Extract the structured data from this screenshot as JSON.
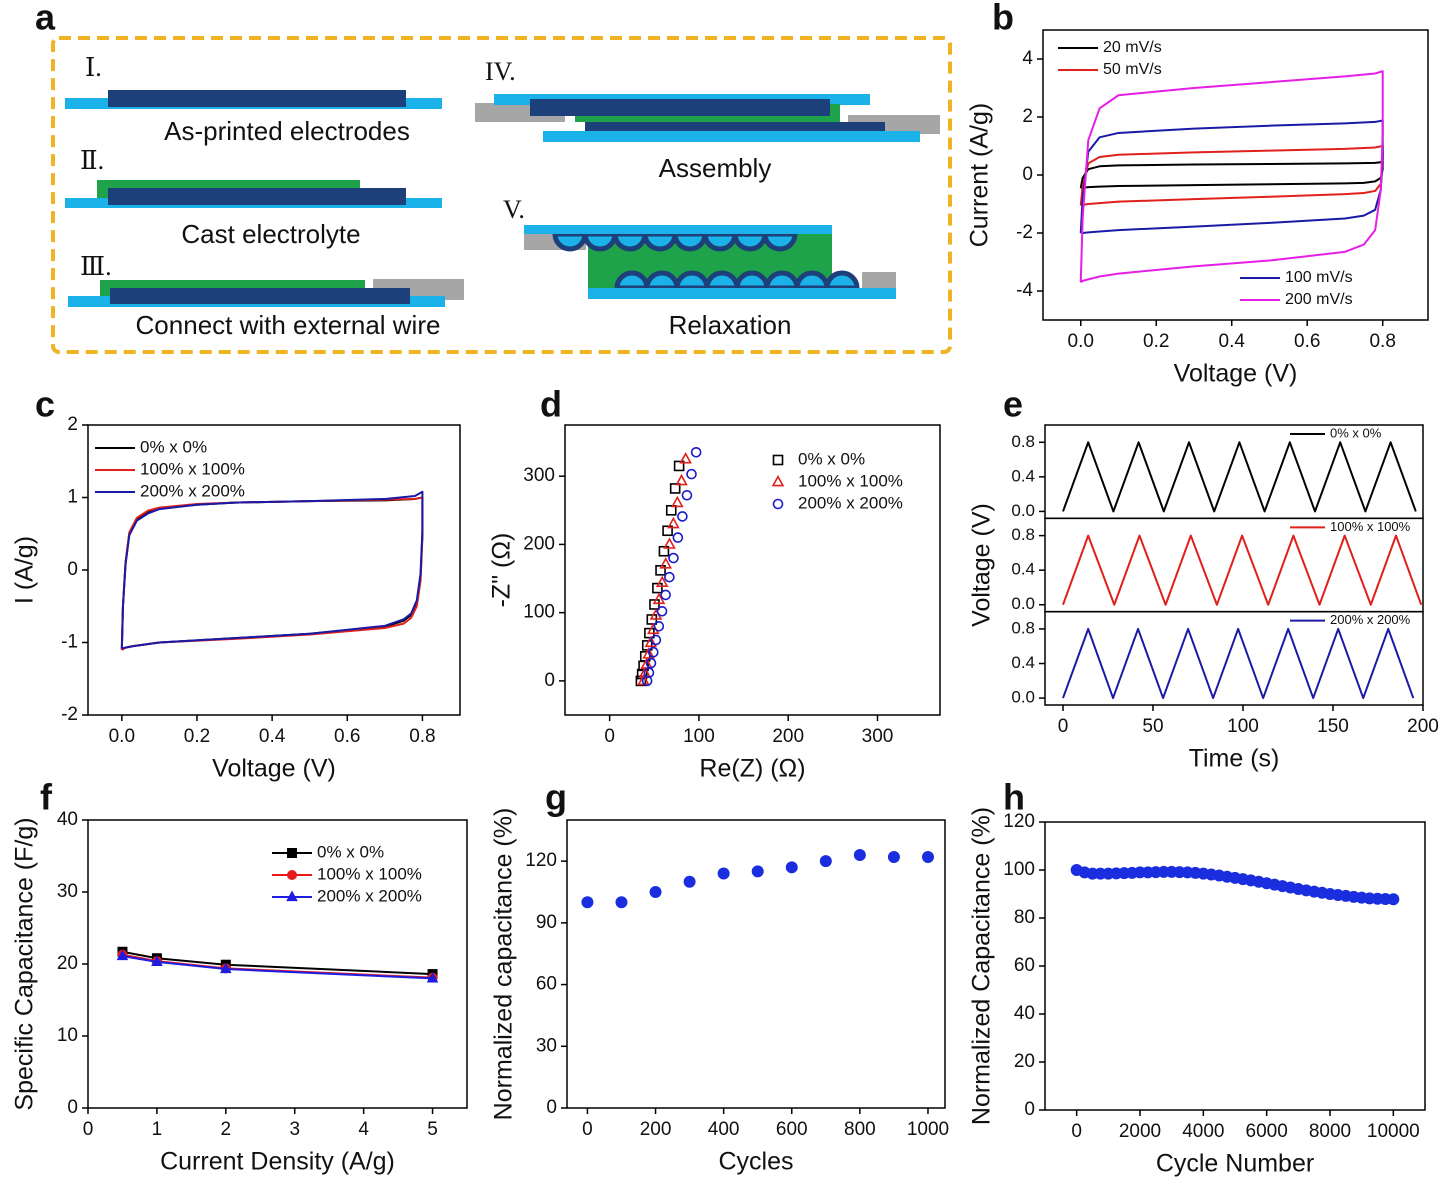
{
  "diagram": {
    "panel_label": "a",
    "steps": [
      {
        "numeral": "Ⅰ.",
        "caption": "As-printed electrodes"
      },
      {
        "numeral": "Ⅱ.",
        "caption": "Cast electrolyte"
      },
      {
        "numeral": "Ⅲ.",
        "caption": "Connect with external wire"
      },
      {
        "numeral": "IV.",
        "caption": "Assembly"
      },
      {
        "numeral": "V.",
        "caption": "Relaxation"
      }
    ]
  },
  "chart_data": [
    {
      "panel_label": "b",
      "type": "line",
      "x_label": "Voltage (V)",
      "y_label": "Current (A/g)",
      "xlim": [
        -0.1,
        0.92
      ],
      "ylim": [
        -5,
        5
      ],
      "xticks": [
        {
          "value": 0,
          "label": "0.0"
        },
        0.2,
        0.4,
        0.6,
        0.8
      ],
      "yticks": [
        -4,
        -2,
        0,
        2,
        4
      ],
      "series": [
        {
          "name": "20 mV/s",
          "color": "#000000",
          "legend_loc": "upper left",
          "x": [
            0,
            0.005,
            0.02,
            0.05,
            0.1,
            0.3,
            0.5,
            0.7,
            0.78,
            0.8,
            0.8,
            0.795,
            0.78,
            0.75,
            0.7,
            0.5,
            0.3,
            0.1,
            0.05,
            0.02,
            0.005,
            0
          ],
          "values": [
            -0.45,
            -0.1,
            0.2,
            0.3,
            0.33,
            0.36,
            0.38,
            0.4,
            0.42,
            0.45,
            0.2,
            -0.1,
            -0.22,
            -0.27,
            -0.29,
            -0.32,
            -0.35,
            -0.38,
            -0.4,
            -0.42,
            -0.44,
            -0.45
          ]
        },
        {
          "name": "50 mV/s",
          "color": "#e0201b",
          "legend_loc": "upper left",
          "x": [
            0,
            0.005,
            0.02,
            0.05,
            0.1,
            0.3,
            0.5,
            0.7,
            0.78,
            0.8,
            0.8,
            0.795,
            0.78,
            0.75,
            0.7,
            0.5,
            0.3,
            0.1,
            0.05,
            0.02,
            0.005,
            0
          ],
          "values": [
            -1.05,
            -0.4,
            0.4,
            0.62,
            0.7,
            0.78,
            0.84,
            0.9,
            0.95,
            1.0,
            0.4,
            -0.3,
            -0.55,
            -0.62,
            -0.66,
            -0.75,
            -0.83,
            -0.92,
            -0.97,
            -1.0,
            -1.03,
            -1.05
          ]
        },
        {
          "name": "100 mV/s",
          "color": "#1a1aa6",
          "legend_loc": "lower right",
          "x": [
            0,
            0.005,
            0.02,
            0.05,
            0.1,
            0.3,
            0.5,
            0.7,
            0.78,
            0.8,
            0.8,
            0.795,
            0.78,
            0.75,
            0.7,
            0.5,
            0.3,
            0.1,
            0.05,
            0.02,
            0.005,
            0
          ],
          "values": [
            -2.0,
            -0.8,
            0.8,
            1.3,
            1.45,
            1.6,
            1.7,
            1.78,
            1.83,
            1.88,
            0.6,
            -0.5,
            -1.2,
            -1.4,
            -1.5,
            -1.65,
            -1.78,
            -1.9,
            -1.95,
            -1.98,
            -2.0,
            -2.0
          ]
        },
        {
          "name": "200 mV/s",
          "color": "#e61ee6",
          "legend_loc": "lower right",
          "x": [
            0,
            0.005,
            0.02,
            0.05,
            0.1,
            0.3,
            0.5,
            0.7,
            0.78,
            0.8,
            0.8,
            0.795,
            0.78,
            0.75,
            0.7,
            0.5,
            0.3,
            0.1,
            0.05,
            0.02,
            0.005,
            0
          ],
          "values": [
            -3.7,
            -1.5,
            1.2,
            2.3,
            2.75,
            3.0,
            3.2,
            3.4,
            3.5,
            3.58,
            1.5,
            -0.5,
            -1.9,
            -2.4,
            -2.65,
            -2.95,
            -3.15,
            -3.4,
            -3.5,
            -3.6,
            -3.65,
            -3.7
          ]
        }
      ]
    },
    {
      "panel_label": "c",
      "type": "line",
      "x_label": "Voltage (V)",
      "y_label": "I (A/g)",
      "xlim": [
        -0.09,
        0.9
      ],
      "ylim": [
        -2,
        2
      ],
      "xticks": [
        {
          "value": 0,
          "label": "0.0"
        },
        0.2,
        0.4,
        0.6,
        0.8
      ],
      "yticks": [
        -2,
        -1,
        0,
        1,
        2
      ],
      "legend_loc": "upper left",
      "series": [
        {
          "name": "0% x 0%",
          "color": "#000000",
          "x": [
            0,
            0.003,
            0.01,
            0.02,
            0.04,
            0.07,
            0.1,
            0.2,
            0.3,
            0.5,
            0.7,
            0.78,
            0.8,
            0.8,
            0.795,
            0.785,
            0.77,
            0.75,
            0.7,
            0.5,
            0.3,
            0.1,
            0.03,
            0.01,
            0
          ],
          "values": [
            -1.1,
            -0.5,
            0.1,
            0.5,
            0.7,
            0.8,
            0.85,
            0.9,
            0.93,
            0.95,
            0.96,
            0.98,
            1.0,
            0.5,
            -0.1,
            -0.45,
            -0.62,
            -0.7,
            -0.78,
            -0.88,
            -0.94,
            -1.0,
            -1.05,
            -1.07,
            -1.1
          ]
        },
        {
          "name": "100% x 100%",
          "color": "#e0201b",
          "x": [
            0,
            0.003,
            0.01,
            0.02,
            0.04,
            0.07,
            0.1,
            0.2,
            0.3,
            0.5,
            0.7,
            0.78,
            0.8,
            0.8,
            0.795,
            0.785,
            0.77,
            0.75,
            0.7,
            0.5,
            0.3,
            0.1,
            0.03,
            0.01,
            0
          ],
          "values": [
            -1.1,
            -0.5,
            0.12,
            0.52,
            0.72,
            0.82,
            0.86,
            0.91,
            0.93,
            0.95,
            0.97,
            0.98,
            1.0,
            0.45,
            -0.15,
            -0.5,
            -0.66,
            -0.74,
            -0.8,
            -0.89,
            -0.95,
            -1.0,
            -1.05,
            -1.07,
            -1.1
          ]
        },
        {
          "name": "200% x 200%",
          "color": "#1a1aa6",
          "x": [
            0,
            0.003,
            0.01,
            0.02,
            0.04,
            0.07,
            0.1,
            0.2,
            0.3,
            0.5,
            0.7,
            0.78,
            0.8,
            0.8,
            0.795,
            0.785,
            0.77,
            0.75,
            0.7,
            0.5,
            0.3,
            0.1,
            0.03,
            0.01,
            0
          ],
          "values": [
            -1.08,
            -0.5,
            0.08,
            0.48,
            0.68,
            0.78,
            0.84,
            0.9,
            0.93,
            0.95,
            0.98,
            1.02,
            1.08,
            0.55,
            -0.05,
            -0.42,
            -0.6,
            -0.68,
            -0.77,
            -0.88,
            -0.94,
            -1.0,
            -1.05,
            -1.07,
            -1.08
          ]
        }
      ]
    },
    {
      "panel_label": "d",
      "type": "scatter",
      "x_label": "Re(Z) (Ω)",
      "y_label": "-Z\" (Ω)",
      "xlim": [
        -50,
        370
      ],
      "ylim": [
        -50,
        375
      ],
      "xticks": [
        0,
        100,
        200,
        300
      ],
      "yticks": [
        0,
        100,
        200,
        300
      ],
      "legend_loc": "upper right",
      "markers_hollow": true,
      "series": [
        {
          "name": "0% x 0%",
          "color": "#000000",
          "marker": "square",
          "x": [
            35,
            36.4,
            38,
            39.9,
            42.1,
            44.5,
            47.2,
            50.2,
            53.5,
            57,
            60.8,
            64.9,
            69,
            73.4,
            77.8
          ],
          "values": [
            0,
            10,
            22,
            36,
            52,
            70,
            90,
            112,
            136,
            162,
            190,
            220,
            250,
            282,
            315
          ]
        },
        {
          "name": "100% x 100%",
          "color": "#e0201b",
          "marker": "triangle",
          "x": [
            38,
            39.6,
            41.5,
            43.7,
            46.1,
            48.9,
            51.9,
            55.3,
            58.9,
            62.8,
            67,
            71.4,
            75.8,
            80.5,
            85.1
          ],
          "values": [
            0,
            11,
            24,
            39,
            56,
            75,
            96,
            119,
            144,
            171,
            200,
            230,
            261,
            293,
            325
          ]
        },
        {
          "name": "200% x 200%",
          "color": "#1a1ad0",
          "marker": "circle",
          "x": [
            42,
            44,
            46.3,
            48.9,
            51.8,
            55.1,
            58.7,
            62.7,
            66.9,
            71.5,
            76.4,
            81.5,
            86.6,
            91.7,
            96.9
          ],
          "values": [
            0,
            12,
            26,
            42,
            60,
            80,
            102,
            126,
            152,
            180,
            210,
            241,
            272,
            303,
            335
          ]
        }
      ]
    },
    {
      "panel_label": "e",
      "type": "line",
      "stacked": true,
      "x_label": "Time (s)",
      "y_label": "Voltage (V)",
      "xlim": [
        -10,
        200
      ],
      "ylim": [
        -0.08,
        1.0
      ],
      "xticks": [
        0,
        50,
        100,
        150,
        200
      ],
      "yticks": [
        {
          "value": 0,
          "label": "0.0"
        },
        0.4,
        0.8
      ],
      "legend_loc": "upper right",
      "series": [
        {
          "name": "0% x 0%",
          "color": "#000000",
          "x": [
            0,
            14,
            28,
            42,
            56,
            70,
            84,
            98,
            112,
            126,
            140,
            154,
            168,
            182,
            196
          ],
          "values": [
            0,
            0.8,
            0,
            0.8,
            0,
            0.8,
            0,
            0.8,
            0,
            0.8,
            0,
            0.8,
            0,
            0.8,
            0
          ]
        },
        {
          "name": "100% x 100%",
          "color": "#e0201b",
          "x": [
            0,
            14,
            28.5,
            42.5,
            57,
            71,
            85.5,
            99.5,
            114,
            128,
            142.5,
            156.5,
            171,
            185,
            199
          ],
          "values": [
            0,
            0.8,
            0,
            0.8,
            0,
            0.8,
            0,
            0.8,
            0,
            0.8,
            0,
            0.8,
            0,
            0.8,
            0
          ]
        },
        {
          "name": "200% x 200%",
          "color": "#1a1aa6",
          "x": [
            0,
            14,
            27.8,
            41.7,
            55.6,
            69.5,
            83.4,
            97.3,
            111.2,
            125.1,
            139,
            152.9,
            166.8,
            180.7,
            194.6
          ],
          "values": [
            0,
            0.8,
            0,
            0.8,
            0,
            0.8,
            0,
            0.8,
            0,
            0.8,
            0,
            0.8,
            0,
            0.8,
            0
          ]
        }
      ]
    },
    {
      "panel_label": "f",
      "type": "line",
      "x_label": "Current Density (A/g)",
      "y_label": "Specific Capacitance (F/g)",
      "xlim": [
        0,
        5.5
      ],
      "ylim": [
        0,
        40
      ],
      "xticks": [
        0,
        1,
        2,
        3,
        4,
        5
      ],
      "yticks": [
        0,
        10,
        20,
        30,
        40
      ],
      "legend_loc": "upper right",
      "x": [
        0.5,
        1,
        2,
        5
      ],
      "series": [
        {
          "name": "0% x 0%",
          "color": "#000000",
          "marker": "square",
          "values": [
            21.7,
            20.8,
            19.9,
            18.6
          ]
        },
        {
          "name": "100% x 100%",
          "color": "#e8191b",
          "marker": "circle",
          "values": [
            21.3,
            20.4,
            19.4,
            18.1
          ]
        },
        {
          "name": "200% x 200%",
          "color": "#1e1ee0",
          "marker": "triangle",
          "values": [
            21.1,
            20.3,
            19.3,
            18.0
          ]
        }
      ]
    },
    {
      "panel_label": "g",
      "type": "scatter",
      "x_label": "Cycles",
      "y_label": "Normalized capacitance (%)",
      "xlim": [
        -60,
        1050
      ],
      "ylim": [
        0,
        140
      ],
      "xticks": [
        0,
        200,
        400,
        600,
        800,
        1000
      ],
      "yticks": [
        0,
        30,
        60,
        90,
        120
      ],
      "marker": "circle",
      "color": "#1a2ee0",
      "x": [
        0,
        100,
        200,
        300,
        400,
        500,
        600,
        700,
        800,
        900,
        1000
      ],
      "values": [
        100,
        100,
        105,
        110,
        114,
        115,
        117,
        120,
        123,
        122,
        122
      ]
    },
    {
      "panel_label": "h",
      "type": "scatter",
      "x_label": "Cycle Number",
      "y_label": "Normalized Capacitance (%)",
      "xlim": [
        -1000,
        11000
      ],
      "ylim": [
        0,
        120
      ],
      "xticks": [
        0,
        2000,
        4000,
        6000,
        8000,
        10000
      ],
      "yticks": [
        0,
        20,
        40,
        60,
        80,
        100,
        120
      ],
      "marker": "circle",
      "color": "#1a2ee0",
      "x": [
        0,
        250,
        500,
        750,
        1000,
        1250,
        1500,
        1750,
        2000,
        2250,
        2500,
        2750,
        3000,
        3250,
        3500,
        3750,
        4000,
        4250,
        4500,
        4750,
        5000,
        5250,
        5500,
        5750,
        6000,
        6250,
        6500,
        6750,
        7000,
        7250,
        7500,
        7750,
        8000,
        8250,
        8500,
        8750,
        9000,
        9250,
        9500,
        9750,
        10000
      ],
      "values": [
        100,
        99,
        98.5,
        98.5,
        98.5,
        98.6,
        98.7,
        98.8,
        99,
        99,
        99.1,
        99.2,
        99.2,
        99.1,
        99,
        98.8,
        98.5,
        98.1,
        97.7,
        97.2,
        96.7,
        96.2,
        95.7,
        95.1,
        94.5,
        93.9,
        93.3,
        92.7,
        92.1,
        91.5,
        91,
        90.5,
        90,
        89.6,
        89.2,
        88.8,
        88.5,
        88.2,
        88,
        87.9,
        87.8
      ]
    }
  ]
}
